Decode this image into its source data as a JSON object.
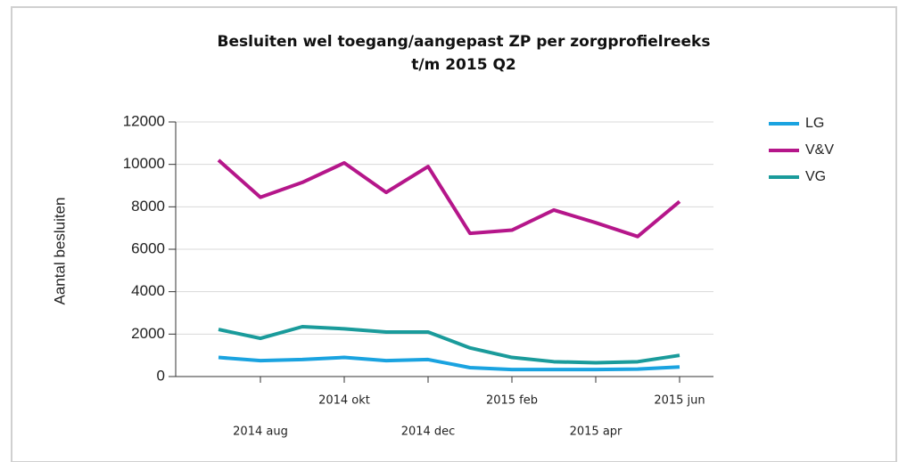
{
  "chart_data": {
    "type": "line",
    "title": [
      "Besluiten wel toegang/aangepast ZP per zorgprofielreeks",
      "t/m 2015 Q2"
    ],
    "y_label": "Aantal besluiten",
    "categories": [
      null,
      "2014 aug",
      null,
      "2014 okt",
      null,
      "2014 dec",
      null,
      "2015 feb",
      null,
      "2015 apr",
      null,
      "2015 jun"
    ],
    "series": [
      {
        "name": "LG",
        "color": "#1aa3e0",
        "values": [
          900,
          750,
          800,
          900,
          750,
          800,
          420,
          330,
          330,
          330,
          350,
          450
        ]
      },
      {
        "name": "V&V",
        "color": "#b5168a",
        "values": [
          10200,
          8450,
          9150,
          10070,
          8680,
          9900,
          6750,
          6900,
          7850,
          7250,
          6600,
          8250
        ]
      },
      {
        "name": "VG",
        "color": "#1a9b9b",
        "values": [
          2220,
          1800,
          2350,
          2250,
          2100,
          2100,
          1350,
          900,
          700,
          650,
          700,
          1000
        ]
      }
    ],
    "ylim": [
      0,
      12000
    ],
    "yticks": [
      0,
      2000,
      4000,
      6000,
      8000,
      10000,
      12000
    ],
    "grid": true,
    "legend": "right"
  }
}
